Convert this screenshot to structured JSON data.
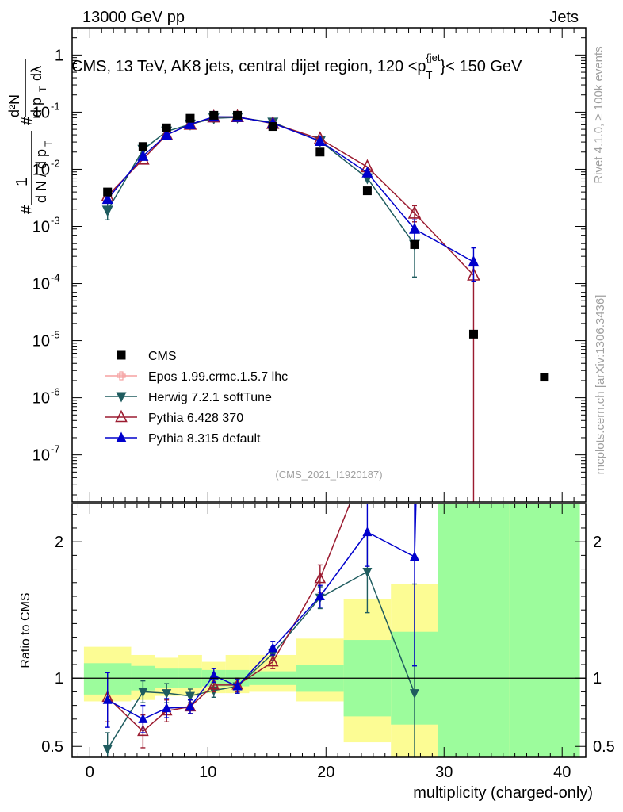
{
  "header": {
    "left": "13000 GeV pp",
    "right": "Jets"
  },
  "side_labels": {
    "version": "Rivet 4.1.0, ≥ 100k events",
    "site": "mcplots.cern.ch [arXiv:1306.3436]"
  },
  "chart_data": {
    "type": "scatter",
    "title": "CMS, 13 TeV, AK8 jets, central dijet region, 120 <p_T^{jet}< 150 GeV",
    "title_parts": {
      "pre": "CMS, 13 TeV, AK8 jets, central dijet region, 120 <p",
      "sub": "T",
      "sup": "{jet",
      "post": "}< 150 GeV"
    },
    "xlabel": "multiplicity (charged-only)",
    "ylabel": "1/dN/dp_T  d²N/dp_T dλ",
    "ylabel_ratio": "Ratio to CMS",
    "watermark": "(CMS_2021_I1920187)",
    "xlim": [
      -1.5,
      42
    ],
    "ylim": [
      1.5e-08,
      3.0
    ],
    "ratio_ylim": [
      0.42,
      2.28
    ],
    "x_ticks": [
      0,
      10,
      20,
      30,
      40
    ],
    "x_tick_labels": [
      "0",
      "10",
      "20",
      "30",
      "40"
    ],
    "y_tick_labels": [
      {
        "v": 1,
        "base": "1",
        "exp": ""
      },
      {
        "v": 0.1,
        "base": "10",
        "exp": "-1"
      },
      {
        "v": 0.01,
        "base": "10",
        "exp": "-2"
      },
      {
        "v": 0.001,
        "base": "10",
        "exp": "-3"
      },
      {
        "v": 0.0001,
        "base": "10",
        "exp": "-4"
      },
      {
        "v": 1e-05,
        "base": "10",
        "exp": "-5"
      },
      {
        "v": 1e-06,
        "base": "10",
        "exp": "-6"
      },
      {
        "v": 1e-07,
        "base": "10",
        "exp": "-7"
      }
    ],
    "ratio_tick_labels": [
      {
        "v": 0.5,
        "label": "0.5"
      },
      {
        "v": 1,
        "label": "1"
      },
      {
        "v": 2,
        "label": "2"
      }
    ],
    "data": {
      "name": "CMS",
      "x": [
        1.5,
        4.5,
        6.5,
        8.5,
        10.5,
        12.5,
        15.5,
        19.5,
        23.5,
        27.5,
        32.5,
        38.5
      ],
      "y": [
        0.004,
        0.025,
        0.053,
        0.078,
        0.088,
        0.088,
        0.056,
        0.02,
        0.0042,
        0.00048,
        1.3e-05,
        2.3e-06
      ]
    },
    "bins": {
      "edges": [
        -0.5,
        3.5,
        5.5,
        7.5,
        9.5,
        11.5,
        13.5,
        17.5,
        21.5,
        25.5,
        29.5,
        35.5,
        41.5
      ],
      "inner": [
        [
          0.88,
          1.11
        ],
        [
          0.91,
          1.09
        ],
        [
          0.93,
          1.07
        ],
        [
          0.93,
          1.07
        ],
        [
          0.94,
          1.06
        ],
        [
          0.94,
          1.06
        ],
        [
          0.95,
          1.05
        ],
        [
          0.9,
          1.1
        ],
        [
          0.72,
          1.28
        ],
        [
          0.66,
          1.34
        ],
        [
          0.42,
          2.28
        ],
        [
          0.42,
          2.28
        ]
      ],
      "outer": [
        [
          0.83,
          1.23
        ],
        [
          0.84,
          1.17
        ],
        [
          0.87,
          1.15
        ],
        [
          0.87,
          1.17
        ],
        [
          0.89,
          1.12
        ],
        [
          0.89,
          1.17
        ],
        [
          0.9,
          1.17
        ],
        [
          0.83,
          1.29
        ],
        [
          0.53,
          1.58
        ],
        [
          0.42,
          1.69
        ],
        [
          0.42,
          2.28
        ],
        [
          0.42,
          2.28
        ]
      ]
    },
    "series": [
      {
        "name": "Epos 1.99.crmc.1.5.7 lhc",
        "color": "#f5a0a0",
        "marker": "cross",
        "x": [],
        "y": [],
        "ratio": []
      },
      {
        "name": "Herwig 7.2.1 softTune",
        "color": "#1f5c5f",
        "marker": "tri-down",
        "x": [
          1.5,
          4.5,
          6.5,
          8.5,
          10.5,
          12.5,
          15.5,
          19.5,
          23.5,
          27.5
        ],
        "y": [
          0.0019,
          0.022,
          0.046,
          0.061,
          0.078,
          0.081,
          0.066,
          0.031,
          0.007,
          0.00048
        ],
        "ylow": [
          0.0013,
          null,
          null,
          null,
          null,
          null,
          null,
          null,
          null,
          0.00013
        ],
        "yhigh": [
          0.0027,
          null,
          null,
          null,
          null,
          null,
          null,
          null,
          null,
          0.00082
        ],
        "ratio": [
          0.48,
          0.9,
          0.89,
          0.87,
          0.91,
          0.94,
          1.18,
          1.59,
          1.78,
          0.89
        ],
        "ratio_err": [
          0.12,
          0.08,
          0.07,
          0.05,
          0.05,
          0.05,
          0.05,
          0.08,
          0.3,
          0.8
        ]
      },
      {
        "name": "Pythia 6.428 370",
        "color": "#9b1b30",
        "marker": "tri-up-open",
        "x": [
          1.5,
          4.5,
          6.5,
          8.5,
          10.5,
          12.5,
          15.5,
          19.5,
          23.5,
          27.5,
          32.5
        ],
        "y": [
          0.0034,
          0.015,
          0.04,
          0.061,
          0.082,
          0.083,
          0.063,
          0.034,
          0.011,
          0.0017,
          0.00014
        ],
        "ylow": [
          null,
          null,
          null,
          null,
          null,
          null,
          null,
          null,
          null,
          0.0012,
          1e-09
        ],
        "yhigh": [
          null,
          null,
          null,
          null,
          null,
          null,
          null,
          null,
          null,
          0.0023,
          0.00027
        ],
        "ratio": [
          0.86,
          0.61,
          0.76,
          0.79,
          0.95,
          0.95,
          1.12,
          1.73,
          2.6,
          3.5,
          10.0
        ],
        "ratio_err": [
          0.18,
          0.12,
          0.08,
          0.05,
          0.05,
          0.05,
          0.05,
          0.1,
          0.3,
          0.5,
          5.0
        ]
      },
      {
        "name": "Pythia 8.315 default",
        "color": "#0000cc",
        "marker": "tri-up",
        "x": [
          1.5,
          4.5,
          6.5,
          8.5,
          10.5,
          12.5,
          15.5,
          19.5,
          23.5,
          27.5,
          32.5
        ],
        "y": [
          0.003,
          0.017,
          0.04,
          0.061,
          0.083,
          0.082,
          0.064,
          0.031,
          0.0087,
          0.0009,
          0.00024
        ],
        "ylow": [
          null,
          null,
          null,
          null,
          null,
          null,
          null,
          null,
          null,
          0.00055,
          0.00011
        ],
        "yhigh": [
          null,
          null,
          null,
          null,
          null,
          null,
          null,
          null,
          null,
          0.0013,
          0.00042
        ],
        "ratio": [
          0.84,
          0.7,
          0.78,
          0.79,
          1.02,
          0.94,
          1.22,
          1.6,
          2.07,
          1.89,
          18.0
        ],
        "ratio_err": [
          0.2,
          0.1,
          0.07,
          0.05,
          0.05,
          0.05,
          0.05,
          0.08,
          0.25,
          0.8,
          10.0
        ]
      }
    ],
    "legend": [
      {
        "label": "CMS",
        "marker": "square",
        "color": "#000000"
      },
      {
        "label": "Epos 1.99.crmc.1.5.7 lhc",
        "marker": "cross",
        "color": "#f5a0a0"
      },
      {
        "label": "Herwig 7.2.1 softTune",
        "marker": "tri-down",
        "color": "#1f5c5f"
      },
      {
        "label": "Pythia 6.428 370",
        "marker": "tri-up-open",
        "color": "#9b1b30"
      },
      {
        "label": "Pythia 8.315 default",
        "marker": "tri-up",
        "color": "#0000cc"
      }
    ],
    "legend_position": "bottom-left",
    "band_colors": {
      "inner": "#9cfc9c",
      "outer": "#fcfc94"
    }
  }
}
